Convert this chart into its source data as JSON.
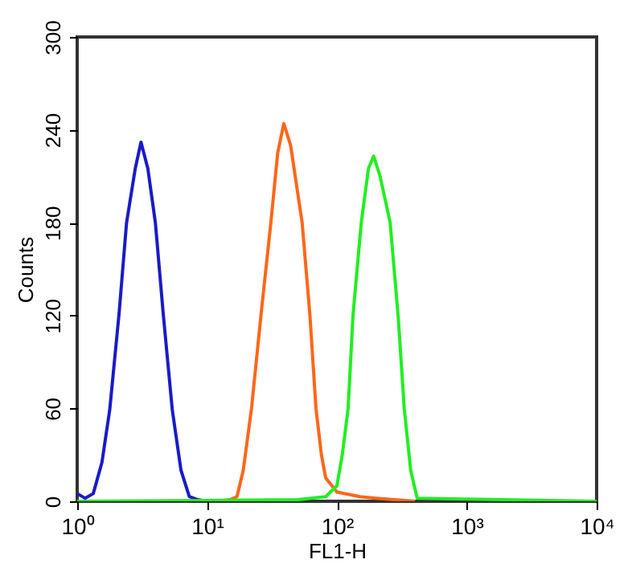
{
  "chart_data": {
    "type": "line",
    "xlabel": "FL1-H",
    "ylabel": "Counts",
    "log": "x",
    "xlim": [
      1,
      10000
    ],
    "ylim": [
      0,
      300
    ],
    "xticks": [
      {
        "value": 1,
        "label": "10⁰"
      },
      {
        "value": 10,
        "label": "10¹"
      },
      {
        "value": 100,
        "label": "10²"
      },
      {
        "value": 1000,
        "label": "10³"
      },
      {
        "value": 10000,
        "label": "10⁴"
      }
    ],
    "yticks": [
      0,
      60,
      120,
      180,
      240,
      300
    ],
    "grid": false,
    "legend": false,
    "marker": "none",
    "line_style": "solid",
    "series": [
      {
        "color": "#1a1ac8",
        "x": [
          1,
          1.15,
          1.33,
          1.55,
          1.78,
          2.1,
          2.4,
          2.8,
          3.1,
          3.5,
          4.0,
          4.6,
          5.4,
          6.3,
          7.3,
          8.5,
          10
        ],
        "values": [
          5,
          2,
          5,
          25,
          59,
          121,
          180,
          215,
          232,
          215,
          180,
          121,
          59,
          20,
          3,
          1,
          0
        ]
      },
      {
        "color": "#ff6619",
        "x": [
          12,
          15,
          17,
          19,
          22,
          26,
          31,
          35,
          39,
          44,
          54,
          62,
          69,
          76,
          82,
          100,
          150,
          200,
          400
        ],
        "values": [
          0,
          1,
          3,
          20,
          60,
          120,
          180,
          225,
          244,
          230,
          180,
          120,
          60,
          30,
          15,
          6,
          3,
          2,
          0
        ]
      },
      {
        "color": "#22ee22",
        "x": [
          1,
          50,
          82,
          100,
          110,
          122,
          133,
          154,
          175,
          192,
          215,
          257,
          296,
          330,
          370,
          415,
          10000
        ],
        "values": [
          0,
          1,
          3,
          10,
          30,
          60,
          120,
          180,
          215,
          223,
          210,
          180,
          120,
          60,
          20,
          2,
          0
        ]
      }
    ]
  }
}
